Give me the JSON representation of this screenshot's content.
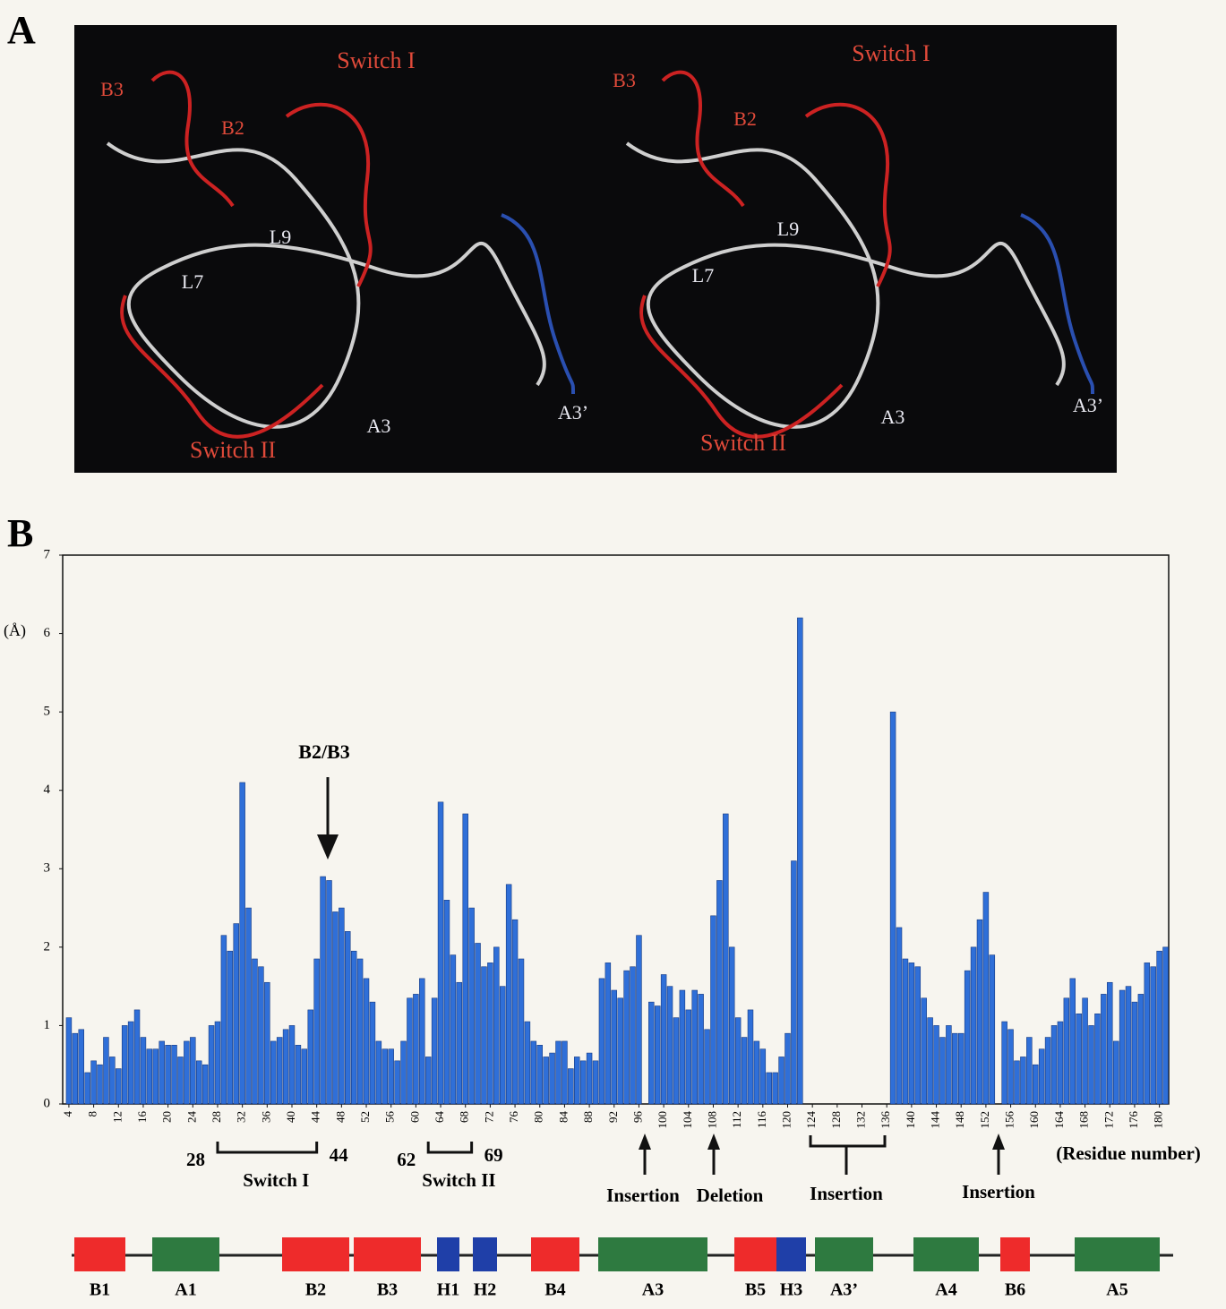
{
  "panel_a": {
    "label": "A",
    "structure_labels": [
      {
        "text": "Switch I",
        "color": "#e04a3a"
      },
      {
        "text": "B3",
        "color": "#e04a3a"
      },
      {
        "text": "B2",
        "color": "#e04a3a"
      },
      {
        "text": "L9",
        "color": "#e8e8f0"
      },
      {
        "text": "L7",
        "color": "#e8e8f0"
      },
      {
        "text": "Switch II",
        "color": "#e04a3a"
      },
      {
        "text": "A3",
        "color": "#e8e8f0"
      },
      {
        "text": "A3’",
        "color": "#e8e8f0"
      },
      {
        "text": "Switch I",
        "color": "#e04a3a"
      },
      {
        "text": "B3",
        "color": "#e04a3a"
      },
      {
        "text": "B2",
        "color": "#e04a3a"
      },
      {
        "text": "L9",
        "color": "#e8e8f0"
      },
      {
        "text": "L7",
        "color": "#e8e8f0"
      },
      {
        "text": "Switch II",
        "color": "#e04a3a"
      },
      {
        "text": "A3",
        "color": "#e8e8f0"
      },
      {
        "text": "A3’",
        "color": "#e8e8f0"
      }
    ]
  },
  "chart_data": {
    "type": "bar",
    "panel_label": "B",
    "y_label": "(Å)",
    "x_label": "(Residue number)",
    "color": "#2f6fd8",
    "x": [
      4,
      5,
      6,
      7,
      8,
      9,
      10,
      11,
      12,
      13,
      14,
      15,
      16,
      17,
      18,
      19,
      20,
      21,
      22,
      23,
      24,
      25,
      26,
      27,
      28,
      29,
      30,
      31,
      32,
      33,
      34,
      35,
      36,
      37,
      38,
      39,
      40,
      41,
      42,
      43,
      44,
      45,
      46,
      47,
      48,
      49,
      50,
      51,
      52,
      53,
      54,
      55,
      56,
      57,
      58,
      59,
      60,
      61,
      62,
      63,
      64,
      65,
      66,
      67,
      68,
      69,
      70,
      71,
      72,
      73,
      74,
      75,
      76,
      77,
      78,
      79,
      80,
      81,
      82,
      83,
      84,
      85,
      86,
      87,
      88,
      89,
      90,
      91,
      92,
      93,
      94,
      95,
      96,
      98,
      99,
      100,
      101,
      102,
      103,
      104,
      105,
      106,
      107,
      108,
      109,
      110,
      111,
      112,
      113,
      114,
      115,
      116,
      117,
      118,
      119,
      120,
      121,
      122,
      137,
      138,
      139,
      140,
      141,
      142,
      143,
      144,
      145,
      146,
      147,
      148,
      149,
      150,
      151,
      152,
      153,
      155,
      156,
      157,
      158,
      159,
      160,
      161,
      162,
      163,
      164,
      165,
      166,
      167,
      168,
      169,
      170,
      171,
      172,
      173,
      174,
      175,
      176,
      177,
      178,
      179,
      180,
      181
    ],
    "values": [
      1.1,
      0.9,
      0.95,
      0.4,
      0.55,
      0.5,
      0.85,
      0.6,
      0.45,
      1.0,
      1.05,
      1.2,
      0.85,
      0.7,
      0.7,
      0.8,
      0.75,
      0.75,
      0.6,
      0.8,
      0.85,
      0.55,
      0.5,
      1.0,
      1.05,
      2.15,
      1.95,
      2.3,
      4.1,
      2.5,
      1.85,
      1.75,
      1.55,
      0.8,
      0.85,
      0.95,
      1.0,
      0.75,
      0.7,
      1.2,
      1.85,
      2.9,
      2.85,
      2.45,
      2.5,
      2.2,
      1.95,
      1.85,
      1.6,
      1.3,
      0.8,
      0.7,
      0.7,
      0.55,
      0.8,
      1.35,
      1.4,
      1.6,
      0.6,
      1.35,
      3.85,
      2.6,
      1.9,
      1.55,
      3.7,
      2.5,
      2.05,
      1.75,
      1.8,
      2.0,
      1.5,
      2.8,
      2.35,
      1.85,
      1.05,
      0.8,
      0.75,
      0.6,
      0.65,
      0.8,
      0.8,
      0.45,
      0.6,
      0.55,
      0.65,
      0.55,
      1.6,
      1.8,
      1.45,
      1.35,
      1.7,
      1.75,
      2.15,
      1.3,
      1.25,
      1.65,
      1.5,
      1.1,
      1.45,
      1.2,
      1.45,
      1.4,
      0.95,
      2.4,
      2.85,
      3.7,
      2.0,
      1.1,
      0.85,
      1.2,
      0.8,
      0.7,
      0.4,
      0.4,
      0.6,
      0.9,
      3.1,
      6.2,
      5.0,
      2.25,
      1.85,
      1.8,
      1.75,
      1.35,
      1.1,
      1.0,
      0.85,
      1.0,
      0.9,
      0.9,
      1.7,
      2.0,
      2.35,
      2.7,
      1.9,
      1.05,
      0.95,
      0.55,
      0.6,
      0.85,
      0.5,
      0.7,
      0.85,
      1.0,
      1.05,
      1.35,
      1.6,
      1.15,
      1.35,
      1.0,
      1.15,
      1.4,
      1.55,
      0.8,
      1.45,
      1.5,
      1.3,
      1.4,
      1.8,
      1.75,
      1.95,
      2.0
    ],
    "xlim": [
      3,
      181.5
    ],
    "ylim": [
      0,
      7
    ],
    "yticks": [
      0,
      1,
      2,
      3,
      4,
      5,
      6,
      7
    ],
    "xticks": [
      4,
      8,
      12,
      16,
      20,
      24,
      28,
      32,
      36,
      40,
      44,
      48,
      52,
      56,
      60,
      64,
      68,
      72,
      76,
      80,
      84,
      88,
      92,
      96,
      100,
      104,
      108,
      112,
      116,
      120,
      124,
      128,
      132,
      136,
      140,
      144,
      148,
      152,
      156,
      160,
      164,
      168,
      172,
      176,
      180
    ],
    "arrow_annotation": "B2/B3",
    "regions": [
      {
        "start": 28,
        "end": 44,
        "label": "Switch I"
      },
      {
        "start": 62,
        "end": 69,
        "label": "Switch II"
      }
    ],
    "events": [
      "Insertion",
      "Deletion",
      "Insertion",
      "Insertion"
    ],
    "elements": [
      {
        "name": "B1",
        "color": "#ee2b2b"
      },
      {
        "name": "A1",
        "color": "#2e7a40"
      },
      {
        "name": "B2",
        "color": "#ee2b2b"
      },
      {
        "name": "B3",
        "color": "#ee2b2b"
      },
      {
        "name": "H1",
        "color": "#1f3fa8"
      },
      {
        "name": "H2",
        "color": "#1f3fa8"
      },
      {
        "name": "B4",
        "color": "#ee2b2b"
      },
      {
        "name": "A3",
        "color": "#2e7a40"
      },
      {
        "name": "B5",
        "color": "#ee2b2b"
      },
      {
        "name": "H3",
        "color": "#1f3fa8"
      },
      {
        "name": "A3’",
        "color": "#2e7a40"
      },
      {
        "name": "A4",
        "color": "#2e7a40"
      },
      {
        "name": "B6",
        "color": "#ee2b2b"
      },
      {
        "name": "A5",
        "color": "#2e7a40"
      }
    ]
  }
}
